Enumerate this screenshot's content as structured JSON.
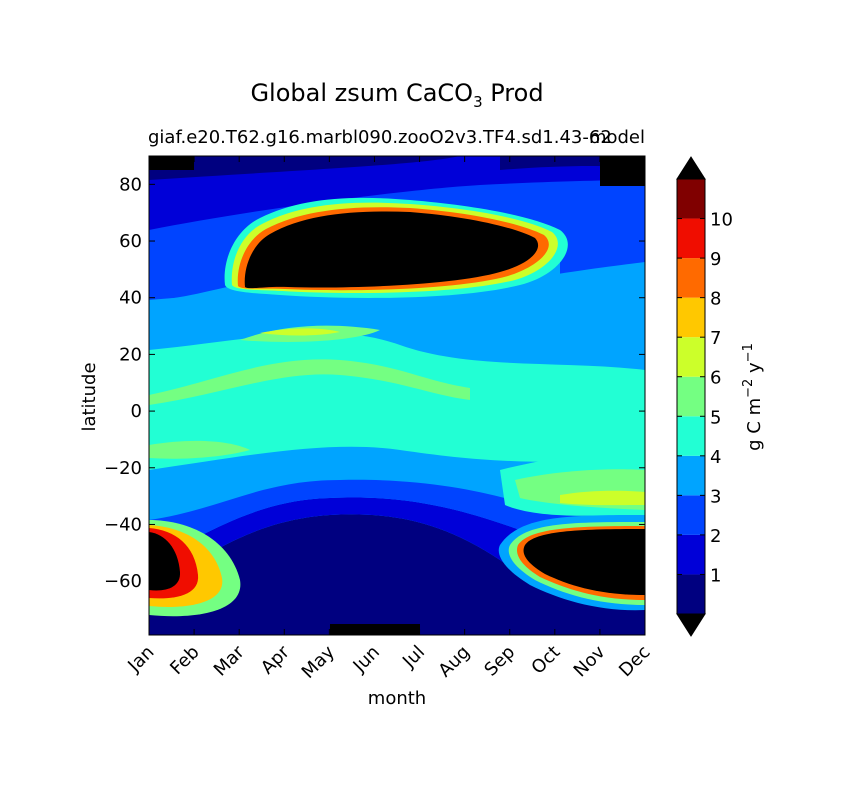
{
  "chart_data": {
    "type": "heatmap",
    "title_main": "Global zsum CaCO",
    "title_sub": "3",
    "title_tail": " Prod",
    "subtitle_left": "giaf.e20.T62.g16.marbl090.zooO2v3.TF4.sd1.43-62",
    "subtitle_right": "model",
    "xlabel": "month",
    "ylabel": "latitude",
    "x_ticks": [
      "Jan",
      "Feb",
      "Mar",
      "Apr",
      "May",
      "Jun",
      "Jul",
      "Aug",
      "Sep",
      "Oct",
      "Nov",
      "Dec"
    ],
    "y_ticks": [
      "80",
      "60",
      "40",
      "20",
      "0",
      "−20",
      "−40",
      "−60"
    ],
    "y_tick_values": [
      80,
      60,
      40,
      20,
      0,
      -20,
      -40,
      -60
    ],
    "ylim": [
      -79,
      90
    ],
    "colorbar": {
      "label_main": "g C m",
      "label_exp1": "−2",
      "label_mid": " y",
      "label_exp2": "−1",
      "tick_labels": [
        "1",
        "2",
        "3",
        "4",
        "5",
        "6",
        "7",
        "8",
        "9",
        "10"
      ],
      "levels": [
        0,
        1,
        2,
        3,
        4,
        5,
        6,
        7,
        8,
        9,
        10,
        11
      ],
      "colors": [
        "#000080",
        "#0000d8",
        "#0044ff",
        "#00a4ff",
        "#22ffd4",
        "#74ff82",
        "#ccff2a",
        "#ffc800",
        "#ff6a00",
        "#f00d00",
        "#800000"
      ],
      "under_color": "#000000",
      "over_color": "#000000",
      "extend": "both"
    },
    "field_description_values": {
      "north_bloom_lat_range": [
        40,
        75
      ],
      "north_bloom_months": [
        "Apr",
        "Sep"
      ],
      "south_bloom_lat_range": [
        -65,
        -42
      ],
      "south_bloom_months": [
        "Oct",
        "Feb"
      ],
      "tropical_band_value_range": [
        3,
        5
      ]
    }
  }
}
